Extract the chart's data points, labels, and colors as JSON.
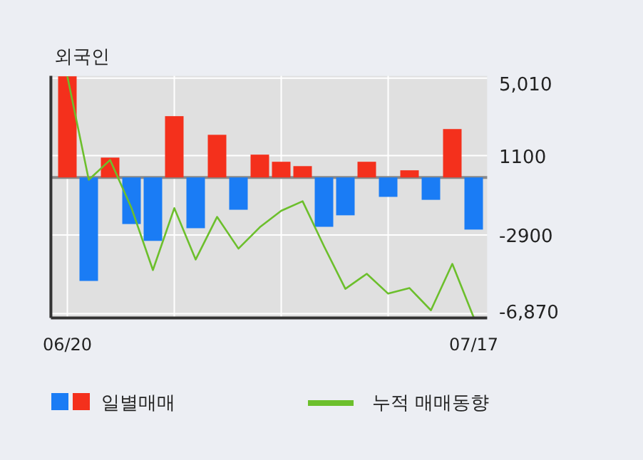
{
  "chart_data": {
    "type": "bar",
    "title": "외국인",
    "categories": [
      "06/20",
      null,
      null,
      null,
      null,
      null,
      null,
      null,
      null,
      null,
      null,
      null,
      null,
      null,
      null,
      null,
      null,
      null,
      null,
      "07/17"
    ],
    "series": [
      {
        "name": "일별매매",
        "colors": [
          "#f4301c",
          "#1a7cf5",
          "#f4301c",
          "#1a7cf5",
          "#1a7cf5",
          "#f4301c",
          "#1a7cf5",
          "#f4301c",
          "#1a7cf5",
          "#f4301c",
          "#f4301c",
          "#f4301c",
          "#1a7cf5",
          "#1a7cf5",
          "#f4301c",
          "#1a7cf5",
          "#f4301c",
          "#1a7cf5",
          "#f4301c",
          "#1a7cf5"
        ],
        "values": [
          5100,
          -5220,
          1000,
          -2350,
          -3200,
          3090,
          -2560,
          2150,
          -1630,
          1150,
          790,
          570,
          -2490,
          -1910,
          790,
          -980,
          360,
          -1130,
          2440,
          -2630
        ]
      },
      {
        "name": "누적 매매동향",
        "type": "line",
        "color": "#6cbf2c",
        "values": [
          5100,
          -120,
          880,
          -1550,
          -4670,
          -1550,
          -4140,
          -1990,
          -3590,
          -2510,
          -1680,
          -1200,
          -3470,
          -5620,
          -4860,
          -5860,
          -5580,
          -6700,
          -4360,
          -7060
        ]
      }
    ],
    "ylim": [
      -7090,
      5120
    ],
    "yticks": [
      {
        "value": 5010,
        "label": "5,010"
      },
      1100,
      -2900,
      {
        "value": -6870,
        "label": "-6,870"
      }
    ],
    "grid": true,
    "legend": "bottom"
  }
}
